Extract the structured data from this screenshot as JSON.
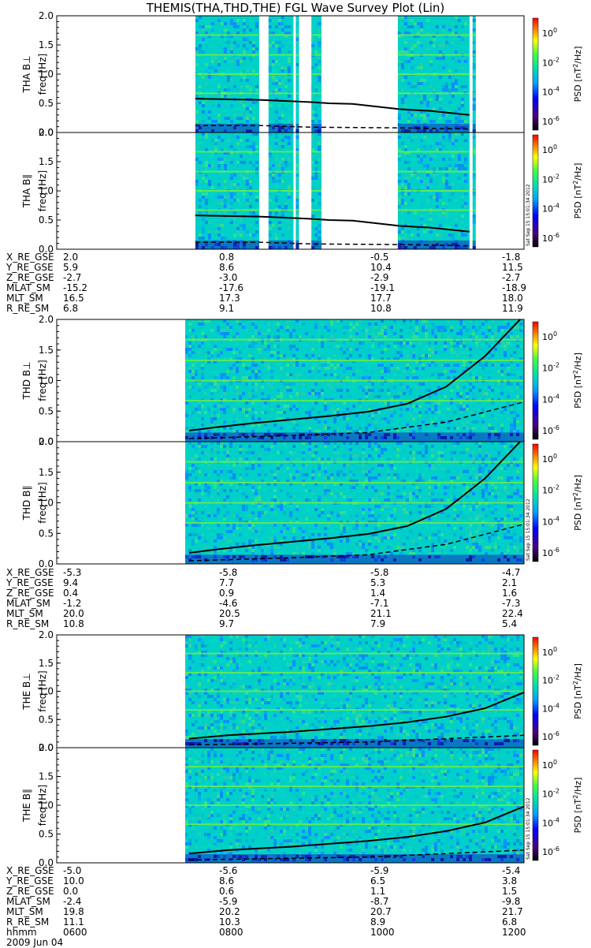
{
  "title": "THEMIS(THA,THD,THE) FGL Wave Survey Plot (Lin)",
  "chart_data": {
    "type": "heatmap",
    "x_axis": {
      "range_hhmm": [
        "0600",
        "1200"
      ],
      "tick_labels": [
        "0600",
        "0800",
        "1000",
        "1200"
      ]
    },
    "y_axis": {
      "label": "freq [Hz]",
      "range": [
        0.0,
        2.0
      ],
      "tick_labels": [
        "0.0",
        "0.5",
        "1.0",
        "1.5",
        "2.0"
      ]
    },
    "colorbar": {
      "label": "PSD [nT²/Hz]",
      "label_parts": [
        "PSD [nT",
        "2",
        "/Hz]"
      ],
      "scale": "log",
      "range": [
        1e-07,
        30
      ],
      "tick_labels": [
        {
          "base": "10",
          "exp": "0"
        },
        {
          "base": "10",
          "exp": "-2"
        },
        {
          "base": "10",
          "exp": "-4"
        },
        {
          "base": "10",
          "exp": "-6"
        }
      ]
    },
    "panels": [
      {
        "probe": "THA",
        "component": "B⊥",
        "label": "THA B⊥",
        "data_intervals": [
          [
            0.778,
            0.86
          ],
          [
            0.872,
            0.904
          ],
          [
            0.907,
            0.911
          ],
          [
            0.927,
            0.94
          ],
          [
            1.038,
            1.13
          ],
          [
            1.134,
            1.138
          ]
        ],
        "gyro_curve": [
          [
            0.778,
            0.58
          ],
          [
            0.86,
            0.56
          ],
          [
            0.927,
            0.52
          ],
          [
            0.95,
            0.5
          ],
          [
            0.98,
            0.49
          ],
          [
            1.04,
            0.4
          ],
          [
            1.08,
            0.37
          ],
          [
            1.13,
            0.3
          ]
        ],
        "half_gyro_curve": [
          [
            0.778,
            0.12
          ],
          [
            0.86,
            0.12
          ],
          [
            0.927,
            0.09
          ],
          [
            1.04,
            0.08
          ],
          [
            1.13,
            0.06
          ]
        ]
      },
      {
        "probe": "THA",
        "component": "B∥",
        "label": "THA B∥",
        "data_intervals": [
          [
            0.778,
            0.86
          ],
          [
            0.872,
            0.904
          ],
          [
            0.907,
            0.911
          ],
          [
            0.927,
            0.94
          ],
          [
            1.038,
            1.13
          ],
          [
            1.134,
            1.138
          ]
        ],
        "gyro_curve": [
          [
            0.778,
            0.58
          ],
          [
            0.86,
            0.56
          ],
          [
            0.927,
            0.52
          ],
          [
            0.95,
            0.5
          ],
          [
            0.98,
            0.49
          ],
          [
            1.04,
            0.4
          ],
          [
            1.08,
            0.37
          ],
          [
            1.13,
            0.3
          ]
        ],
        "half_gyro_curve": [
          [
            0.778,
            0.12
          ],
          [
            0.86,
            0.12
          ],
          [
            0.927,
            0.09
          ],
          [
            1.04,
            0.08
          ],
          [
            1.13,
            0.06
          ]
        ]
      },
      {
        "probe": "THD",
        "component": "B⊥",
        "label": "THD B⊥",
        "data_intervals": [
          [
            0.765,
            1.2
          ]
        ],
        "gyro_curve": [
          [
            0.77,
            0.18
          ],
          [
            0.8,
            0.23
          ],
          [
            0.85,
            0.3
          ],
          [
            0.9,
            0.36
          ],
          [
            0.95,
            0.42
          ],
          [
            1.0,
            0.49
          ],
          [
            1.05,
            0.62
          ],
          [
            1.1,
            0.9
          ],
          [
            1.15,
            1.4
          ],
          [
            1.195,
            2.0
          ]
        ],
        "half_gyro_curve": [
          [
            0.77,
            0.05
          ],
          [
            0.9,
            0.1
          ],
          [
            1.0,
            0.15
          ],
          [
            1.1,
            0.32
          ],
          [
            1.2,
            0.65
          ]
        ]
      },
      {
        "probe": "THD",
        "component": "B∥",
        "label": "THD B∥",
        "data_intervals": [
          [
            0.765,
            1.2
          ]
        ],
        "gyro_curve": [
          [
            0.77,
            0.18
          ],
          [
            0.8,
            0.23
          ],
          [
            0.85,
            0.3
          ],
          [
            0.9,
            0.36
          ],
          [
            0.95,
            0.42
          ],
          [
            1.0,
            0.49
          ],
          [
            1.05,
            0.62
          ],
          [
            1.1,
            0.9
          ],
          [
            1.15,
            1.4
          ],
          [
            1.195,
            2.0
          ]
        ],
        "half_gyro_curve": [
          [
            0.77,
            0.05
          ],
          [
            0.9,
            0.1
          ],
          [
            1.0,
            0.15
          ],
          [
            1.1,
            0.32
          ],
          [
            1.2,
            0.65
          ]
        ]
      },
      {
        "probe": "THE",
        "component": "B⊥",
        "label": "THE B⊥",
        "data_intervals": [
          [
            0.765,
            1.2
          ]
        ],
        "gyro_curve": [
          [
            0.77,
            0.16
          ],
          [
            0.82,
            0.22
          ],
          [
            0.9,
            0.28
          ],
          [
            0.95,
            0.33
          ],
          [
            1.0,
            0.38
          ],
          [
            1.05,
            0.45
          ],
          [
            1.1,
            0.55
          ],
          [
            1.15,
            0.7
          ],
          [
            1.2,
            0.98
          ]
        ],
        "half_gyro_curve": [
          [
            0.77,
            0.05
          ],
          [
            1.0,
            0.1
          ],
          [
            1.2,
            0.22
          ]
        ]
      },
      {
        "probe": "THE",
        "component": "B∥",
        "label": "THE B∥",
        "data_intervals": [
          [
            0.765,
            1.2
          ]
        ],
        "gyro_curve": [
          [
            0.77,
            0.16
          ],
          [
            0.82,
            0.22
          ],
          [
            0.9,
            0.28
          ],
          [
            0.95,
            0.33
          ],
          [
            1.0,
            0.38
          ],
          [
            1.05,
            0.45
          ],
          [
            1.1,
            0.55
          ],
          [
            1.15,
            0.7
          ],
          [
            1.2,
            0.98
          ]
        ],
        "half_gyro_curve": [
          [
            0.77,
            0.05
          ],
          [
            1.0,
            0.1
          ],
          [
            1.2,
            0.22
          ]
        ]
      }
    ]
  },
  "timestamp": "Sat Sep 15 15:01:34 2012",
  "tables": [
    {
      "rows": [
        {
          "label": "X_RE_GSE",
          "values": [
            "2.0",
            "0.8",
            "-0.5",
            "-1.8"
          ]
        },
        {
          "label": "Y_RE_GSE",
          "values": [
            "5.9",
            "8.6",
            "10.4",
            "11.5"
          ]
        },
        {
          "label": "Z_RE_GSE",
          "values": [
            "-2.7",
            "-3.0",
            "-2.9",
            "-2.7"
          ]
        },
        {
          "label": "MLAT_SM",
          "values": [
            "-15.2",
            "-17.6",
            "-19.1",
            "-18.9"
          ]
        },
        {
          "label": "MLT_SM",
          "values": [
            "16.5",
            "17.3",
            "17.7",
            "18.0"
          ]
        },
        {
          "label": "R_RE_SM",
          "values": [
            "6.8",
            "9.1",
            "10.8",
            "11.9"
          ]
        }
      ]
    },
    {
      "rows": [
        {
          "label": "X_RE_GSE",
          "values": [
            "-5.3",
            "-5.8",
            "-5.8",
            "-4.7"
          ]
        },
        {
          "label": "Y_RE_GSE",
          "values": [
            "9.4",
            "7.7",
            "5.3",
            "2.1"
          ]
        },
        {
          "label": "Z_RE_GSE",
          "values": [
            "0.4",
            "0.9",
            "1.4",
            "1.6"
          ]
        },
        {
          "label": "MLAT_SM",
          "values": [
            "-1.2",
            "-4.6",
            "-7.1",
            "-7.3"
          ]
        },
        {
          "label": "MLT_SM",
          "values": [
            "20.0",
            "20.5",
            "21.1",
            "22.4"
          ]
        },
        {
          "label": "R_RE_SM",
          "values": [
            "10.8",
            "9.7",
            "7.9",
            "5.4"
          ]
        }
      ]
    },
    {
      "rows": [
        {
          "label": "X_RE_GSE",
          "values": [
            "-5.0",
            "-5.6",
            "-5.9",
            "-5.4"
          ]
        },
        {
          "label": "Y_RE_GSE",
          "values": [
            "10.0",
            "8.6",
            "6.5",
            "3.8"
          ]
        },
        {
          "label": "Z_RE_GSE",
          "values": [
            "0.0",
            "0.6",
            "1.1",
            "1.5"
          ]
        },
        {
          "label": "MLAT_SM",
          "values": [
            "-2.4",
            "-5.9",
            "-8.7",
            "-9.8"
          ]
        },
        {
          "label": "MLT_SM",
          "values": [
            "19.8",
            "20.2",
            "20.7",
            "21.7"
          ]
        },
        {
          "label": "R_RE_SM",
          "values": [
            "11.1",
            "10.3",
            "8.9",
            "6.8"
          ]
        },
        {
          "label": "hhmm",
          "values": [
            "0600",
            "0800",
            "1000",
            "1200"
          ]
        }
      ]
    }
  ],
  "date_label": "2009 Jun 04",
  "colors": {
    "background": "#00d0c8",
    "gap": "#ffffff",
    "curve": "#000000"
  }
}
